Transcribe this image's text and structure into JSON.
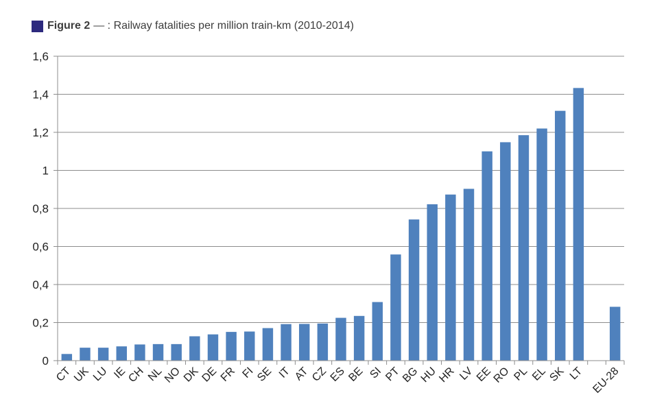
{
  "figure": {
    "label": "Figure 2",
    "title": "— : Railway fatalities per million train-km (2010-2014)",
    "marker_color": "#2d2a7e"
  },
  "chart_data": {
    "type": "bar",
    "categories": [
      "CT",
      "UK",
      "LU",
      "IE",
      "CH",
      "NL",
      "NO",
      "DK",
      "DE",
      "FR",
      "FI",
      "SE",
      "IT",
      "AT",
      "CZ",
      "ES",
      "BE",
      "SI",
      "PT",
      "BG",
      "HU",
      "HR",
      "LV",
      "EE",
      "RO",
      "PL",
      "EL",
      "SK",
      "LT",
      "",
      "EU-28"
    ],
    "values": [
      0.035,
      0.068,
      0.068,
      0.075,
      0.085,
      0.087,
      0.087,
      0.128,
      0.138,
      0.151,
      0.153,
      0.171,
      0.192,
      0.193,
      0.195,
      0.225,
      0.235,
      0.308,
      0.558,
      0.742,
      0.822,
      0.873,
      0.903,
      1.1,
      1.148,
      1.185,
      1.22,
      1.313,
      1.433,
      null,
      0.283
    ],
    "yticks": [
      "0",
      "0,2",
      "0,4",
      "0,6",
      "0,8",
      "1",
      "1,2",
      "1,4",
      "1,6"
    ],
    "ylim": [
      0,
      1.6
    ],
    "grid": true,
    "bar_color": "#4f81bd",
    "grid_color": "#8c8c8c"
  }
}
